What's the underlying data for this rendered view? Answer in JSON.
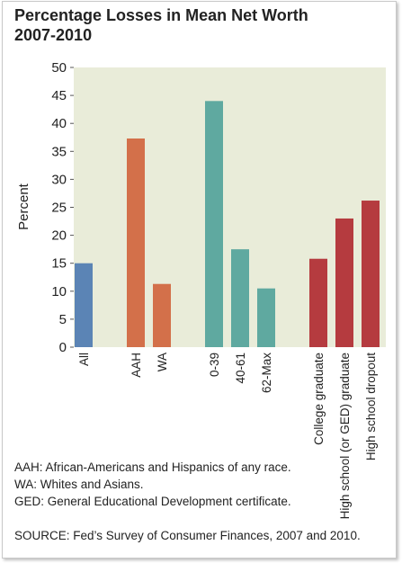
{
  "title_line1": "Percentage Losses in Mean Net Worth",
  "title_line2": "2007-2010",
  "chart_data": {
    "type": "bar",
    "ylabel": "Percent",
    "xlabel": "",
    "ylim": [
      0,
      50
    ],
    "yticks": [
      0,
      5,
      10,
      15,
      20,
      25,
      30,
      35,
      40,
      45,
      50
    ],
    "grid": false,
    "categories": [
      "All",
      "AAH",
      "WA",
      "0-39",
      "40-61",
      "62-Max",
      "College graduate",
      "High school (or GED) graduate",
      "High school dropout"
    ],
    "values": [
      15.0,
      37.3,
      11.3,
      44.0,
      17.5,
      10.5,
      15.8,
      23.0,
      26.2
    ],
    "groups": [
      0,
      1,
      1,
      2,
      2,
      2,
      3,
      3,
      3
    ],
    "colors": [
      "#5b84b5",
      "#d3704a",
      "#d3704a",
      "#5fa9a0",
      "#5fa9a0",
      "#5fa9a0",
      "#b53b3f",
      "#b53b3f",
      "#b53b3f"
    ],
    "background": "#e9ecd9"
  },
  "notes": [
    "AAH: African-Americans and Hispanics of any race.",
    "WA: Whites and Asians.",
    "GED: General Educational Development certificate."
  ],
  "source": "SOURCE: Fed’s Survey of Consumer Finances, 2007 and 2010."
}
